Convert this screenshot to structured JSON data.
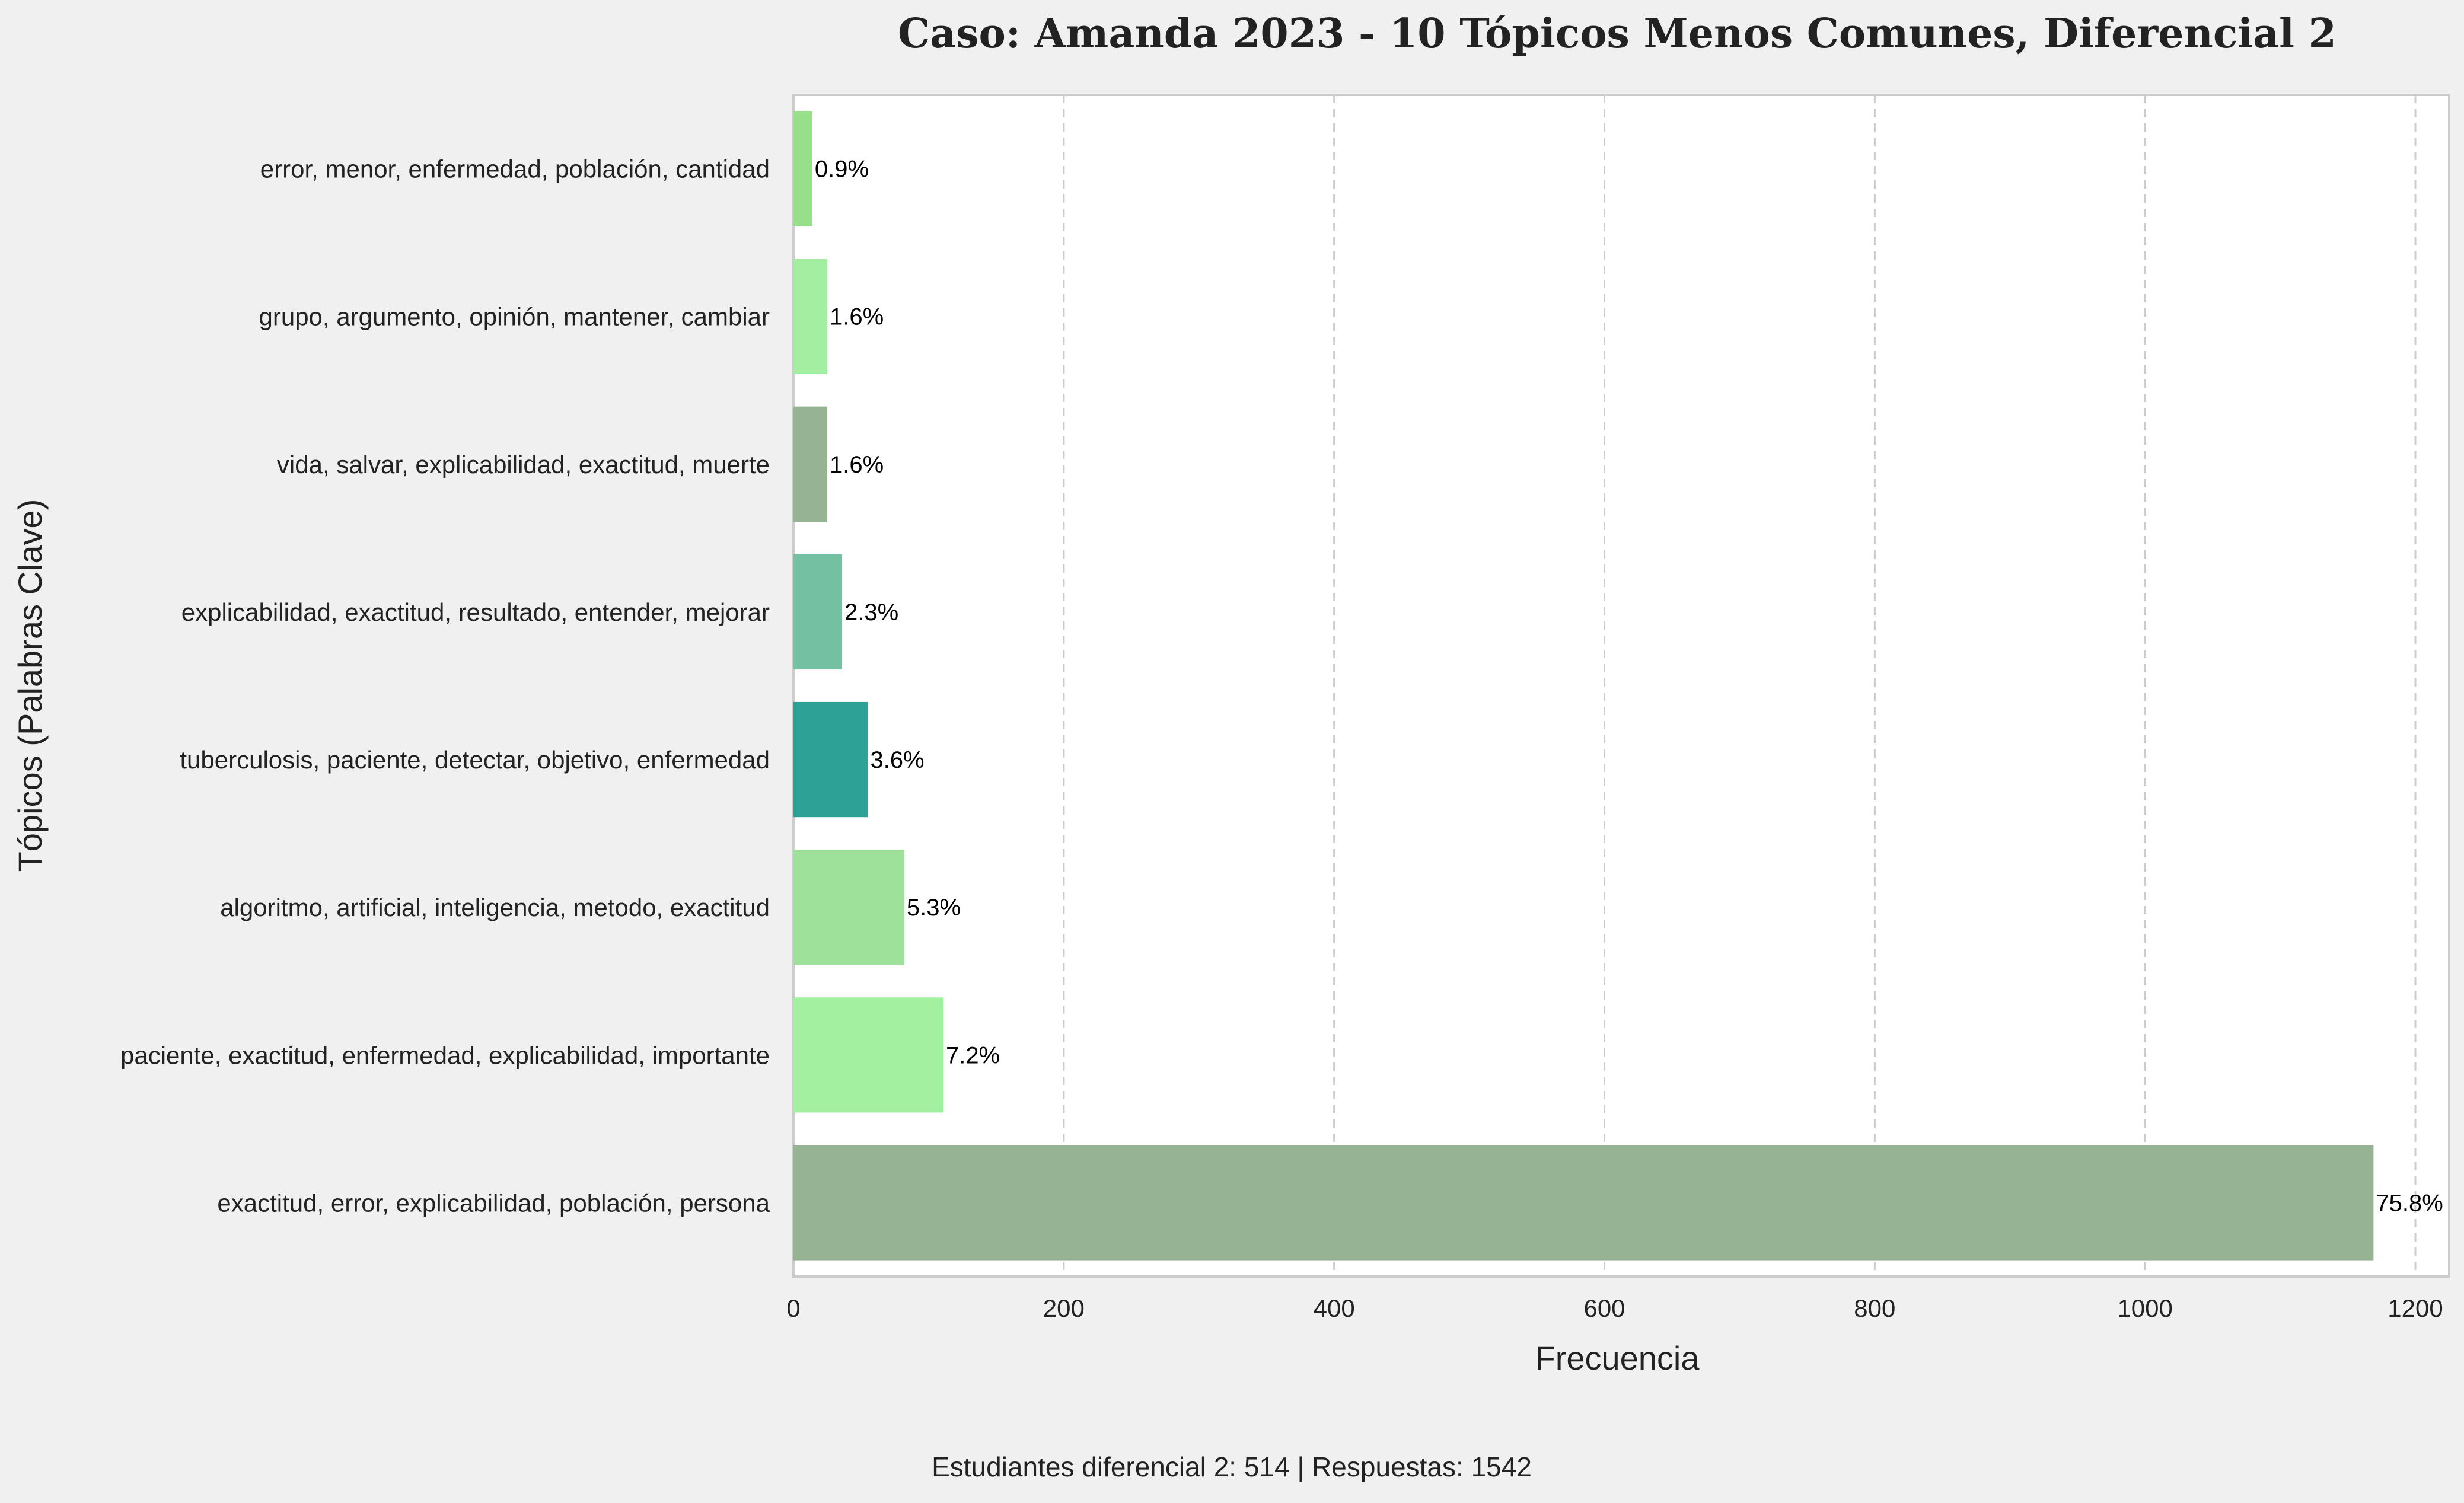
{
  "chart_data": {
    "type": "bar",
    "orientation": "horizontal",
    "title": "Caso: Amanda 2023 - 10 Tópicos Menos Comunes, Diferencial 2",
    "xlabel": "Frecuencia",
    "ylabel": "Tópicos (Palabras Clave)",
    "xlim": [
      0,
      1225
    ],
    "xticks": [
      0,
      200,
      400,
      600,
      800,
      1000,
      1200
    ],
    "grid": "vertical-dashed",
    "categories": [
      "error, menor, enfermedad, población, cantidad",
      "grupo, argumento, opinión, mantener, cambiar",
      "vida, salvar, explicabilidad, exactitud, muerte",
      "explicabilidad, exactitud, resultado, entender, mejorar",
      "tuberculosis, paciente, detectar, objetivo, enfermedad",
      "algoritmo, artificial, inteligencia, metodo, exactitud",
      "paciente, exactitud, enfermedad, explicabilidad, importante",
      "exactitud, error, explicabilidad, población, persona"
    ],
    "values": [
      14,
      25,
      25,
      36,
      55,
      82,
      111,
      1169
    ],
    "labels": [
      "0.9%",
      "1.6%",
      "1.6%",
      "2.3%",
      "3.6%",
      "5.3%",
      "7.2%",
      "75.8%"
    ],
    "colors": [
      "#98df8a",
      "#a3eea0",
      "#96b494",
      "#74c0a3",
      "#2ea196",
      "#9de19a",
      "#a4f0a1",
      "#96b494"
    ],
    "footer": "Estudiantes diferencial 2: 514 | Respuestas: 1542"
  }
}
